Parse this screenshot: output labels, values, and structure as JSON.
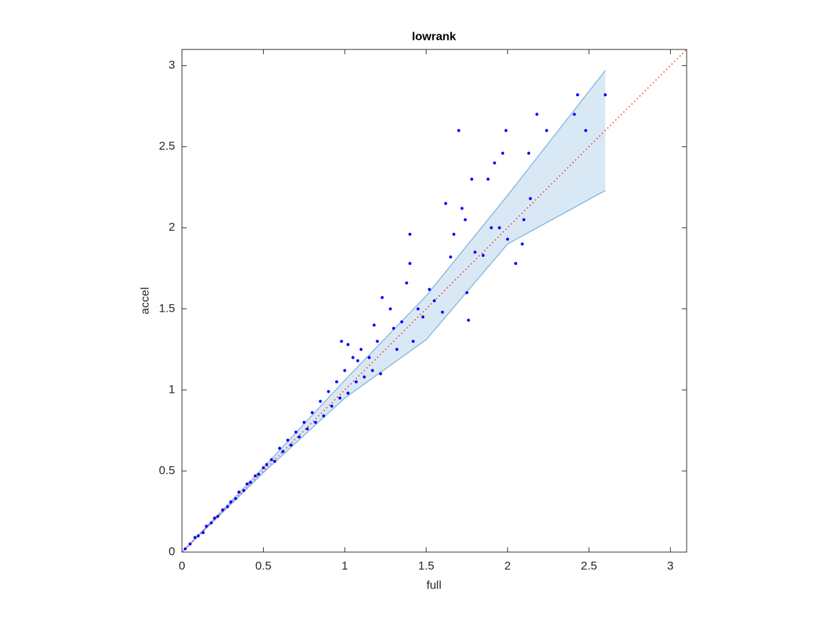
{
  "chart_data": {
    "type": "scatter",
    "title": "lowrank",
    "xlabel": "full",
    "ylabel": "accel",
    "x": [
      0.02,
      0.05,
      0.08,
      0.1,
      0.13,
      0.15,
      0.18,
      0.2,
      0.22,
      0.25,
      0.28,
      0.3,
      0.33,
      0.35,
      0.38,
      0.4,
      0.42,
      0.45,
      0.47,
      0.5,
      0.52,
      0.55,
      0.57,
      0.6,
      0.62,
      0.65,
      0.67,
      0.7,
      0.72,
      0.75,
      0.77,
      0.8,
      0.82,
      0.85,
      0.87,
      0.9,
      0.92,
      0.95,
      0.97,
      1.0,
      1.02,
      1.05,
      1.07,
      1.1,
      1.12,
      1.15,
      1.17,
      1.2,
      0.98,
      1.02,
      1.08,
      1.18,
      1.22,
      1.23,
      1.28,
      1.3,
      1.32,
      1.35,
      1.38,
      1.4,
      1.42,
      1.45,
      1.48,
      1.4,
      1.52,
      1.55,
      1.6,
      1.62,
      1.65,
      1.7,
      1.72,
      1.75,
      1.76,
      1.78,
      1.8,
      1.67,
      1.74,
      1.85,
      1.88,
      1.9,
      1.92,
      1.95,
      1.97,
      1.99,
      2.0,
      2.05,
      2.09,
      2.1,
      2.13,
      2.14,
      2.18,
      2.24,
      2.43,
      2.41,
      2.48,
      2.6
    ],
    "y": [
      0.02,
      0.05,
      0.09,
      0.1,
      0.12,
      0.16,
      0.18,
      0.21,
      0.22,
      0.26,
      0.28,
      0.31,
      0.33,
      0.37,
      0.38,
      0.42,
      0.43,
      0.47,
      0.48,
      0.52,
      0.54,
      0.57,
      0.56,
      0.64,
      0.62,
      0.69,
      0.66,
      0.74,
      0.71,
      0.8,
      0.76,
      0.86,
      0.8,
      0.93,
      0.84,
      0.99,
      0.9,
      1.05,
      0.95,
      1.12,
      0.98,
      1.2,
      1.05,
      1.25,
      1.08,
      1.2,
      1.12,
      1.3,
      1.3,
      1.28,
      1.18,
      1.4,
      1.1,
      1.57,
      1.5,
      1.38,
      1.25,
      1.42,
      1.66,
      1.78,
      1.3,
      1.5,
      1.45,
      1.96,
      1.62,
      1.55,
      1.48,
      2.15,
      1.82,
      2.6,
      2.12,
      1.6,
      1.43,
      2.3,
      1.85,
      1.96,
      2.05,
      1.83,
      2.3,
      2.0,
      2.4,
      2.0,
      2.46,
      2.6,
      1.93,
      1.78,
      1.9,
      2.05,
      2.46,
      2.18,
      2.7,
      2.6,
      2.82,
      2.7,
      2.6,
      2.82
    ],
    "color": "#0000ff",
    "xlim": [
      0,
      3.1
    ],
    "ylim": [
      0,
      3.1
    ],
    "xticks": [
      0,
      0.5,
      1,
      1.5,
      2,
      2.5,
      3
    ],
    "yticks": [
      0,
      0.5,
      1,
      1.5,
      2,
      2.5,
      3
    ],
    "band": {
      "x": [
        0,
        0.5,
        1,
        1.5,
        2,
        2.6
      ],
      "upper": [
        0,
        0.52,
        1.06,
        1.58,
        2.2,
        2.97
      ],
      "lower": [
        0,
        0.49,
        0.95,
        1.31,
        1.9,
        2.23
      ],
      "color": "#d9e8f5",
      "edge_color": "#86b9e0"
    },
    "reference_line": {
      "x": [
        0,
        3.1
      ],
      "y": [
        0,
        3.1
      ],
      "color": "#ff0000"
    }
  }
}
